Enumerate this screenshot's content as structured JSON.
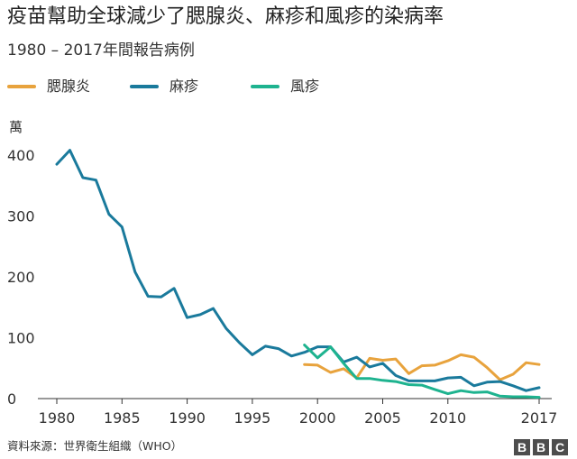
{
  "header": {
    "title": "疫苗幫助全球減少了腮腺炎、麻疹和風疹的染病率",
    "subtitle": "1980 – 2017年間報告病例"
  },
  "legend": [
    {
      "label": "腮腺炎",
      "color": "#E8A33D"
    },
    {
      "label": "麻疹",
      "color": "#1A7A9C"
    },
    {
      "label": "風疹",
      "color": "#1EB38F"
    }
  ],
  "footer": {
    "source": "資料來源：世界衛生組織（WHO）",
    "logo": [
      "B",
      "B",
      "C"
    ]
  },
  "chart_data": {
    "type": "line",
    "title": "疫苗幫助全球減少了腮腺炎、麻疹和風疹的染病率",
    "subtitle": "1980 – 2017年間報告病例",
    "ylabel": "萬",
    "xlabel": "",
    "xlim": [
      1980,
      2017
    ],
    "ylim": [
      0,
      400
    ],
    "yticks": [
      0,
      100,
      200,
      300,
      400
    ],
    "xticks": [
      1980,
      1985,
      1990,
      1995,
      2000,
      2005,
      2010,
      2017
    ],
    "grid": false,
    "legend_position": "top-left",
    "series": [
      {
        "name": "腮腺炎",
        "color": "#E8A33D",
        "x": [
          1999,
          2000,
          2001,
          2002,
          2003,
          2004,
          2005,
          2006,
          2007,
          2008,
          2009,
          2010,
          2011,
          2012,
          2013,
          2014,
          2015,
          2016,
          2017
        ],
        "values": [
          56,
          55,
          43,
          49,
          34,
          66,
          63,
          65,
          41,
          54,
          55,
          62,
          72,
          68,
          51,
          31,
          40,
          59,
          56
        ]
      },
      {
        "name": "麻疹",
        "color": "#1A7A9C",
        "x": [
          1980,
          1981,
          1982,
          1983,
          1984,
          1985,
          1986,
          1987,
          1988,
          1989,
          1990,
          1991,
          1992,
          1993,
          1994,
          1995,
          1996,
          1997,
          1998,
          1999,
          2000,
          2001,
          2002,
          2003,
          2004,
          2005,
          2006,
          2007,
          2008,
          2009,
          2010,
          2011,
          2012,
          2013,
          2014,
          2015,
          2016,
          2017
        ],
        "values": [
          385,
          408,
          363,
          359,
          303,
          282,
          208,
          168,
          167,
          181,
          133,
          138,
          148,
          115,
          92,
          72,
          86,
          82,
          70,
          76,
          85,
          85,
          60,
          68,
          52,
          58,
          38,
          29,
          29,
          29,
          34,
          35,
          21,
          27,
          28,
          21,
          13,
          18
        ]
      },
      {
        "name": "風疹",
        "color": "#1EB38F",
        "x": [
          1999,
          2000,
          2001,
          2002,
          2003,
          2004,
          2005,
          2006,
          2007,
          2008,
          2009,
          2010,
          2011,
          2012,
          2013,
          2014,
          2015,
          2016,
          2017
        ],
        "values": [
          88,
          67,
          85,
          58,
          33,
          33,
          30,
          28,
          23,
          22,
          15,
          8,
          13,
          10,
          11,
          4,
          3,
          3,
          2
        ]
      }
    ]
  }
}
